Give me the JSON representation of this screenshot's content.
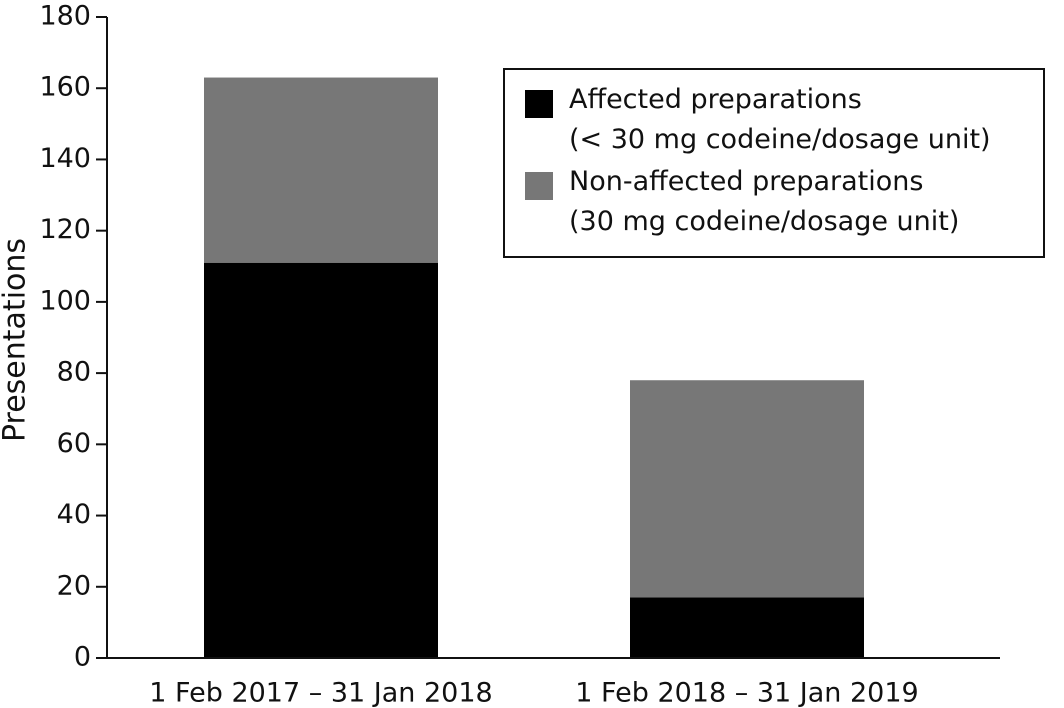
{
  "chart_data": {
    "type": "bar",
    "stacked": true,
    "ylabel": "Presentations",
    "categories": [
      "1 Feb 2017 – 31 Jan 2018",
      "1 Feb 2018 – 31 Jan 2019"
    ],
    "series": [
      {
        "name": "Affected preparations\n(< 30 mg codeine/dosage unit)",
        "color": "#000000",
        "values": [
          111,
          17
        ]
      },
      {
        "name": "Non-affected preparations\n(30 mg codeine/dosage unit)",
        "color": "#777777",
        "values": [
          52,
          61
        ]
      }
    ],
    "ylim": [
      0,
      180
    ],
    "yticks": [
      0,
      20,
      40,
      60,
      80,
      100,
      120,
      140,
      160,
      180
    ],
    "legend": "upper right",
    "grid": false
  }
}
